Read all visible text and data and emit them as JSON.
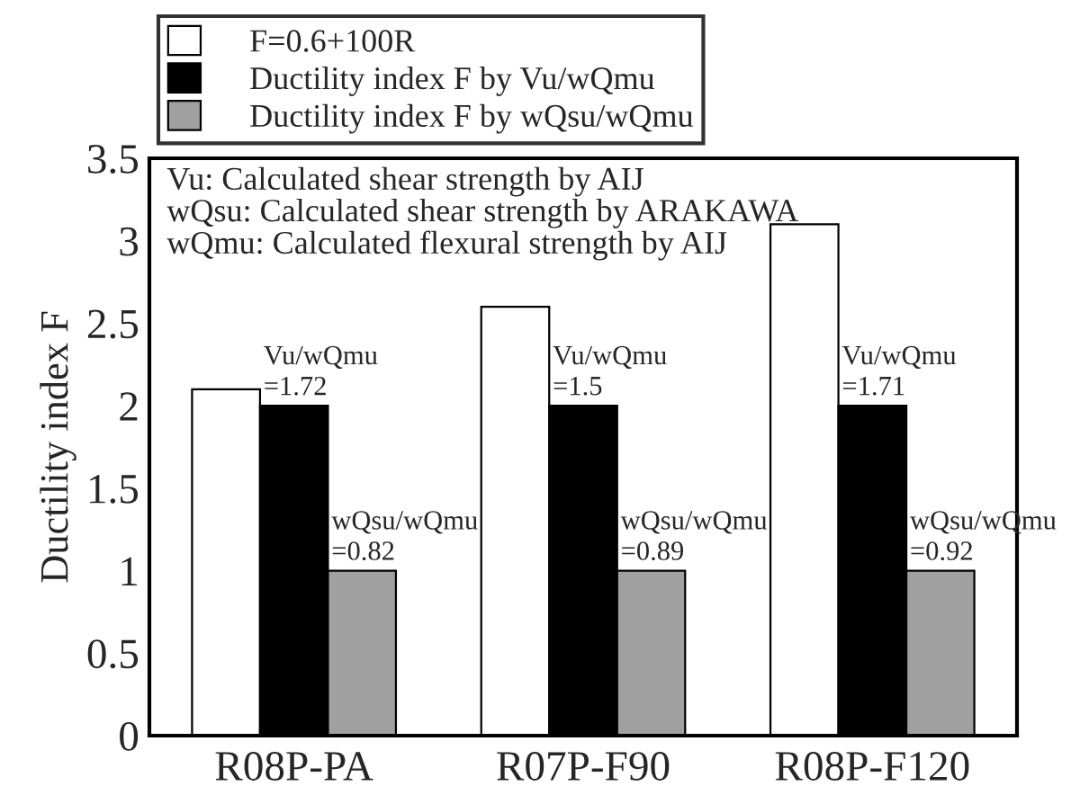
{
  "chart_data": {
    "type": "bar",
    "ylabel": "Ductility index F",
    "categories": [
      "R08P-PA",
      "R07P-F90",
      "R08P-F120"
    ],
    "series": [
      {
        "name": "F=0.6+100R",
        "color": "#ffffff",
        "values": [
          2.1,
          2.6,
          3.1
        ]
      },
      {
        "name": "Ductility index F by Vu/wQmu",
        "color": "#000000",
        "values": [
          2,
          2,
          2
        ]
      },
      {
        "name": "Ductility index F by wQsu/wQmu",
        "color": "#a0a0a0",
        "values": [
          1,
          1,
          1
        ]
      }
    ],
    "ylim": [
      0,
      3.5
    ],
    "yticks": [
      0,
      0.5,
      1,
      1.5,
      2,
      2.5,
      3,
      3.5
    ],
    "grid": false,
    "legend": "top",
    "annotations": [
      "Vu: Calculated shear strength by AIJ\nwQsu: Calculated shear strength by ARAKAWA\nwQmu: Calculated flexural strength by AIJ",
      {
        "text": "Vu/wQmu\n=1.72",
        "x": "R08P-PA",
        "y": 2
      },
      {
        "text": "Vu/wQmu\n=1.5",
        "x": "R07P-F90",
        "y": 2
      },
      {
        "text": "Vu/wQmu\n=1.71",
        "x": "R08P-F120",
        "y": 2
      },
      "wQsu/wQmu\n=0.82",
      "wQsu/wQmu\n=0.89",
      "wQsu/wQmu\n=0.92"
    ]
  }
}
